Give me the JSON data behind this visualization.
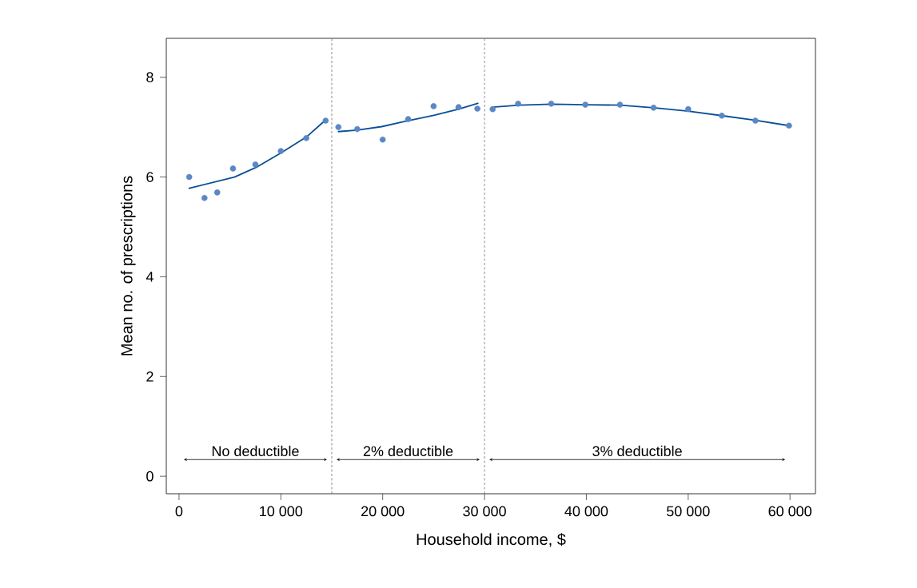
{
  "chart_data": {
    "type": "scatter",
    "xlabel": "Household income, $",
    "ylabel": "Mean no. of prescriptions",
    "xlim": [
      -1250,
      62500
    ],
    "ylim": [
      -0.35,
      8.78
    ],
    "xticks": [
      0,
      {
        "value": 10000,
        "label": "10 000"
      },
      {
        "value": 20000,
        "label": "20 000"
      },
      {
        "value": 30000,
        "label": "30 000"
      },
      {
        "value": 40000,
        "label": "40 000"
      },
      {
        "value": 50000,
        "label": "50 000"
      },
      {
        "value": 60000,
        "label": "60 000"
      }
    ],
    "yticks": [
      0,
      2,
      4,
      6,
      8
    ],
    "grid": false,
    "series": [
      {
        "marker": "circle",
        "color": "#5b87c5",
        "x": [
          1000,
          2500,
          3750,
          5300,
          7500,
          10000,
          12500,
          14400,
          15650,
          17500,
          20000,
          22500,
          25000,
          27450,
          29300,
          30800,
          33300,
          36550,
          39900,
          43300,
          46600,
          50000,
          53300,
          56600,
          59900
        ],
        "values": [
          6.0,
          5.58,
          5.69,
          6.17,
          6.25,
          6.52,
          6.78,
          7.13,
          7.0,
          6.96,
          6.75,
          7.16,
          7.42,
          7.4,
          7.37,
          7.36,
          7.47,
          7.47,
          7.45,
          7.45,
          7.39,
          7.36,
          7.23,
          7.13,
          7.03
        ]
      },
      {
        "type": "line",
        "marker": "none",
        "line_style": "solid",
        "color": "#0a4f96",
        "x": [
          940,
          5450,
          7550,
          10000,
          12500,
          14100,
          14400
        ],
        "values": [
          5.77,
          6.0,
          6.19,
          6.48,
          6.8,
          7.09,
          7.13
        ]
      },
      {
        "type": "line",
        "marker": "none",
        "line_style": "solid",
        "color": "#0a4f96",
        "x": [
          15600,
          17500,
          19900,
          22500,
          25100,
          27450,
          29400
        ],
        "values": [
          6.91,
          6.94,
          7.01,
          7.13,
          7.24,
          7.36,
          7.48
        ]
      },
      {
        "type": "line",
        "marker": "none",
        "line_style": "solid",
        "color": "#0a4f96",
        "x": [
          30800,
          33400,
          36600,
          40000,
          43300,
          46600,
          50000,
          53300,
          56500,
          59900
        ],
        "values": [
          7.4,
          7.44,
          7.46,
          7.45,
          7.44,
          7.39,
          7.32,
          7.23,
          7.14,
          7.03
        ]
      }
    ],
    "ref_lines": [
      {
        "axis": "x",
        "value": 15000,
        "color": "#707070",
        "line_style": "dashed"
      },
      {
        "axis": "x",
        "value": 30000,
        "color": "#707070",
        "line_style": "dashed"
      }
    ],
    "annotations": [
      "No deductible",
      "2% deductible",
      "3% deductible"
    ]
  }
}
